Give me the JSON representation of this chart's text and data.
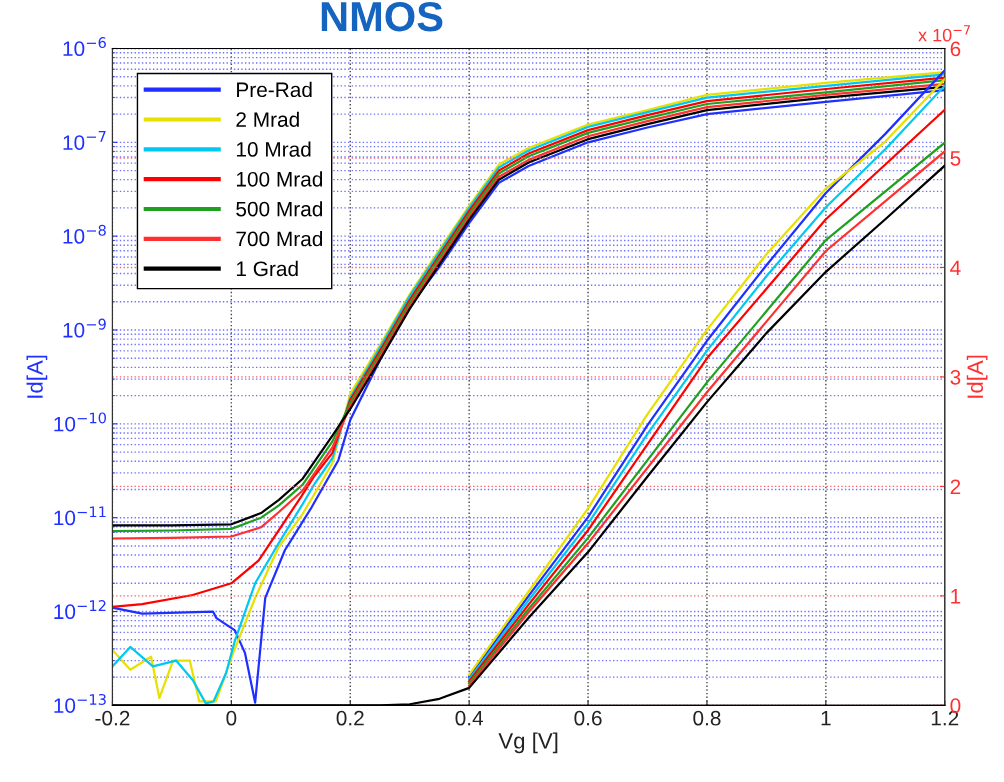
{
  "chart_data": {
    "type": "line",
    "title": "NMOS",
    "xlabel": "Vg [V]",
    "ylabel": "Id[A]",
    "y2label": "Id[A]",
    "annotations": [
      "x 10$^{−7}$"
    ],
    "log": "y",
    "grid": true,
    "legend": "top left",
    "line_style": "solid",
    "marker": "none",
    "xlim": [
      -0.2,
      1.2
    ],
    "xticks": [
      -0.2,
      0,
      0.2,
      0.4,
      0.6,
      0.8,
      1,
      1.2
    ],
    "ylim": [
      1e-13,
      1e-06
    ],
    "yticks": [
      {
        "value": 1e-13,
        "label": "10$^{−13}$"
      },
      {
        "value": 1e-12,
        "label": "10$^{−12}$"
      },
      {
        "value": 1e-11,
        "label": "10$^{−11}$"
      },
      {
        "value": 1e-10,
        "label": "10$^{−10}$"
      },
      {
        "value": 1e-09,
        "label": "10$^{−9}$"
      },
      {
        "value": 1e-08,
        "label": "10$^{−8}$"
      },
      {
        "value": 1e-07,
        "label": "10$^{−7}$"
      },
      {
        "value": 1e-06,
        "label": "10$^{−6}$"
      }
    ],
    "y2lim": [
      0,
      6
    ],
    "y2ticks": [
      0,
      1,
      2,
      3,
      4,
      5,
      6
    ],
    "series": [
      {
        "name": "Pre-Rad",
        "color": "#1f2fff",
        "x": [
          -0.2,
          -0.15,
          -0.031,
          -0.025,
          0.006,
          0.023,
          0.04,
          0.057,
          0.09,
          0.135,
          0.18,
          0.2,
          0.25,
          0.3,
          0.35,
          0.4,
          0.45,
          0.5,
          0.6,
          0.7,
          0.8,
          1.0,
          1.2
        ],
        "values": [
          1.1e-12,
          9.5e-13,
          1e-12,
          8.5e-13,
          6.3e-13,
          3.6e-13,
          1.07e-13,
          1.4e-12,
          4.5e-12,
          1.29e-11,
          4.1e-11,
          1.1e-10,
          4.8e-10,
          1.8e-09,
          4.7e-09,
          1.38e-08,
          3.7e-08,
          5.6e-08,
          1e-07,
          1.44e-07,
          2e-07,
          2.7e-07,
          3.6e-07
        ]
      },
      {
        "name": "2 Mrad",
        "color": "#e8e000",
        "x": [
          -0.2,
          -0.17,
          -0.135,
          -0.121,
          -0.098,
          -0.07,
          -0.054,
          -0.026,
          0.003,
          0.04,
          0.08,
          0.12,
          0.14,
          0.17,
          0.2,
          0.25,
          0.3,
          0.35,
          0.4,
          0.45,
          0.5,
          0.6,
          0.7,
          0.8,
          1.0,
          1.2
        ],
        "values": [
          3.9e-13,
          2.4e-13,
          3.3e-13,
          1.2e-13,
          3e-13,
          3e-13,
          1.1e-13,
          1.1e-13,
          3.6e-13,
          1.4e-12,
          4.9e-12,
          1.1e-11,
          1.8e-11,
          3.8e-11,
          2.1e-10,
          6.9e-10,
          2.4e-09,
          7.2e-09,
          2.1e-08,
          5.8e-08,
          8.7e-08,
          1.55e-07,
          2.2e-07,
          3.2e-07,
          4.3e-07,
          5.6e-07
        ]
      },
      {
        "name": "10 Mrad",
        "color": "#00c8f0",
        "x": [
          -0.2,
          -0.17,
          -0.132,
          -0.093,
          -0.065,
          -0.043,
          -0.03,
          -0.009,
          0.006,
          0.04,
          0.08,
          0.12,
          0.14,
          0.17,
          0.2,
          0.25,
          0.3,
          0.35,
          0.4,
          0.45,
          0.5,
          0.6,
          0.7,
          0.8,
          1.0,
          1.2
        ],
        "values": [
          2.6e-13,
          4.2e-13,
          2.6e-13,
          3e-13,
          1.86e-13,
          1.05e-13,
          1.1e-13,
          2.2e-13,
          4.9e-13,
          2e-12,
          5.4e-12,
          1.4e-11,
          2.3e-11,
          4.3e-11,
          1.9e-10,
          6.5e-10,
          2.3e-09,
          6.8e-09,
          2e-08,
          5.4e-08,
          8.2e-08,
          1.46e-07,
          2.1e-07,
          3e-07,
          4e-07,
          5.3e-07
        ]
      },
      {
        "name": "100 Mrad",
        "color": "#ff0000",
        "x": [
          -0.2,
          -0.15,
          -0.065,
          0.0,
          0.046,
          0.083,
          0.117,
          0.14,
          0.17,
          0.2,
          0.25,
          0.3,
          0.35,
          0.4,
          0.45,
          0.5,
          0.6,
          0.7,
          0.8,
          1.0,
          1.2
        ],
        "values": [
          1.12e-12,
          1.2e-12,
          1.5e-12,
          2e-12,
          3.5e-12,
          7.9e-12,
          1.66e-11,
          2.8e-11,
          4.9e-11,
          1.8e-10,
          6e-10,
          2.1e-09,
          6.3e-09,
          1.86e-08,
          5e-08,
          7.6e-08,
          1.35e-07,
          1.95e-07,
          2.75e-07,
          3.7e-07,
          4.9e-07
        ]
      },
      {
        "name": "500 Mrad",
        "color": "#20a020",
        "x": [
          -0.2,
          -0.1,
          0.0,
          0.05,
          0.08,
          0.12,
          0.17,
          0.2,
          0.25,
          0.3,
          0.35,
          0.4,
          0.45,
          0.5,
          0.6,
          0.7,
          0.8,
          1.0,
          1.2
        ],
        "values": [
          7.2e-12,
          7.3e-12,
          7.6e-12,
          1e-11,
          1.35e-11,
          2.25e-11,
          6.5e-11,
          1.67e-10,
          5.6e-10,
          1.95e-09,
          5.9e-09,
          1.73e-08,
          4.65e-08,
          7.1e-08,
          1.26e-07,
          1.81e-07,
          2.56e-07,
          3.4e-07,
          4.6e-07
        ]
      },
      {
        "name": "700 Mrad",
        "color": "#ff3030",
        "x": [
          -0.2,
          -0.1,
          0.0,
          0.05,
          0.08,
          0.12,
          0.17,
          0.2,
          0.25,
          0.3,
          0.35,
          0.4,
          0.45,
          0.5,
          0.6,
          0.7,
          0.8,
          1.0,
          1.2
        ],
        "values": [
          6e-12,
          6.1e-12,
          6.3e-12,
          7.9e-12,
          1.15e-11,
          1.95e-11,
          5.6e-11,
          1.55e-10,
          5.2e-10,
          1.8e-09,
          5.4e-09,
          1.6e-08,
          4.3e-08,
          6.5e-08,
          1.16e-07,
          1.68e-07,
          2.37e-07,
          3.2e-07,
          4.2e-07
        ]
      },
      {
        "name": "1 Grad",
        "color": "#000000",
        "x": [
          -0.2,
          -0.1,
          0.0,
          0.05,
          0.08,
          0.12,
          0.17,
          0.2,
          0.25,
          0.3,
          0.35,
          0.4,
          0.45,
          0.5,
          0.6,
          0.7,
          0.8,
          1.0,
          1.2
        ],
        "values": [
          8.3e-12,
          8.3e-12,
          8.5e-12,
          1.12e-11,
          1.55e-11,
          2.6e-11,
          7.5e-11,
          1.44e-10,
          4.8e-10,
          1.68e-09,
          5e-09,
          1.49e-08,
          4e-08,
          6.1e-08,
          1.08e-07,
          1.56e-07,
          2.2e-07,
          3e-07,
          3.9e-07
        ]
      },
      {
        "axis": "y2",
        "color": "#1f2fff",
        "x": [
          0.4,
          0.5,
          0.6,
          0.7,
          0.8,
          0.9,
          1.0,
          1.1,
          1.2
        ],
        "values": [
          0.26,
          1.0,
          1.72,
          2.56,
          3.33,
          4.02,
          4.68,
          5.22,
          5.8
        ]
      },
      {
        "axis": "y2",
        "color": "#e8e000",
        "x": [
          0.4,
          0.5,
          0.6,
          0.7,
          0.8,
          0.9,
          1.0,
          1.1,
          1.2
        ],
        "values": [
          0.28,
          1.04,
          1.8,
          2.66,
          3.43,
          4.12,
          4.72,
          5.15,
          5.72
        ]
      },
      {
        "axis": "y2",
        "color": "#00c8f0",
        "x": [
          0.4,
          0.5,
          0.6,
          0.7,
          0.8,
          0.9,
          1.0,
          1.1,
          1.2
        ],
        "values": [
          0.24,
          0.96,
          1.66,
          2.48,
          3.24,
          3.92,
          4.55,
          5.08,
          5.66
        ]
      },
      {
        "axis": "y2",
        "color": "#ff0000",
        "x": [
          0.4,
          0.5,
          0.6,
          0.8,
          1.0,
          1.2
        ],
        "values": [
          0.22,
          0.92,
          1.6,
          3.17,
          4.44,
          5.44
        ]
      },
      {
        "axis": "y2",
        "color": "#20a020",
        "x": [
          0.4,
          0.5,
          0.6,
          0.8,
          1.0,
          1.2
        ],
        "values": [
          0.2,
          0.88,
          1.53,
          2.95,
          4.25,
          5.14
        ]
      },
      {
        "axis": "y2",
        "color": "#ff3030",
        "x": [
          0.4,
          0.5,
          0.6,
          0.8,
          1.0,
          1.2
        ],
        "values": [
          0.18,
          0.85,
          1.48,
          2.86,
          4.15,
          5.06
        ]
      },
      {
        "axis": "y2",
        "color": "#000000",
        "x": [
          -0.2,
          0.25,
          0.3,
          0.35,
          0.4,
          0.5,
          0.6,
          0.7,
          0.8,
          0.9,
          1.0,
          1.1,
          1.2
        ],
        "values": [
          0,
          0,
          0.01,
          0.06,
          0.16,
          0.8,
          1.4,
          2.09,
          2.77,
          3.4,
          3.96,
          4.44,
          4.93
        ]
      }
    ]
  }
}
